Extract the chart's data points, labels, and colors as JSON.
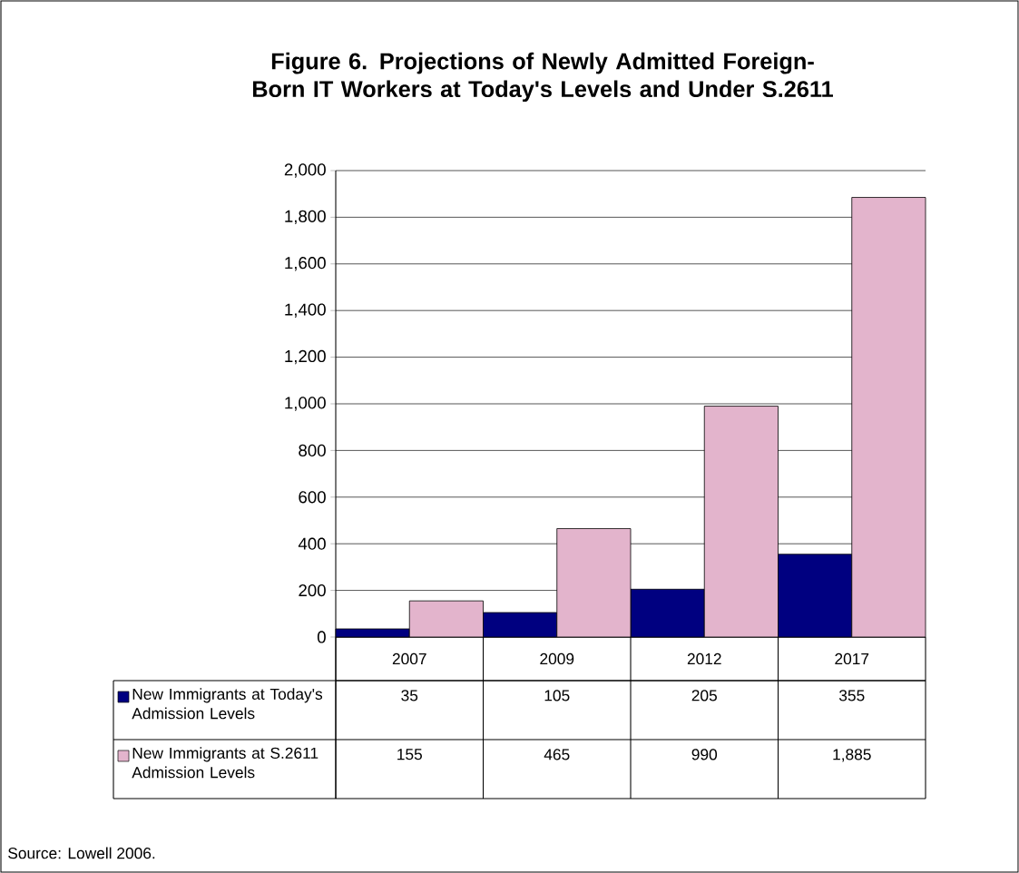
{
  "chart_data": {
    "type": "bar",
    "title": "Figure 6. Projections of Newly Admitted Foreign-Born IT Workers at Today's Levels and Under S.2611",
    "categories": [
      "2007",
      "2009",
      "2012",
      "2017"
    ],
    "series": [
      {
        "name": "New Immigrants at Today's Admission Levels",
        "color": "#000080",
        "values": [
          35,
          105,
          205,
          355
        ],
        "value_labels": [
          "35",
          "105",
          "205",
          "355"
        ]
      },
      {
        "name": "New Immigrants at S.2611 Admission Levels",
        "color": "#e3b4cc",
        "values": [
          155,
          465,
          990,
          1885
        ],
        "value_labels": [
          "155",
          "465",
          "990",
          "1,885"
        ]
      }
    ],
    "ylim": [
      0,
      2000
    ],
    "yticks": [
      0,
      200,
      400,
      600,
      800,
      {
        "value": 1000,
        "label": "1,000"
      },
      {
        "value": 1200,
        "label": "1,200"
      },
      {
        "value": 1400,
        "label": "1,400"
      },
      {
        "value": 1600,
        "label": "1,600"
      },
      {
        "value": 1800,
        "label": "1,800"
      },
      {
        "value": 2000,
        "label": "2,000"
      }
    ],
    "grid": "y",
    "legend": "bottom",
    "annotations": [
      "Source: Lowell 2006."
    ]
  }
}
